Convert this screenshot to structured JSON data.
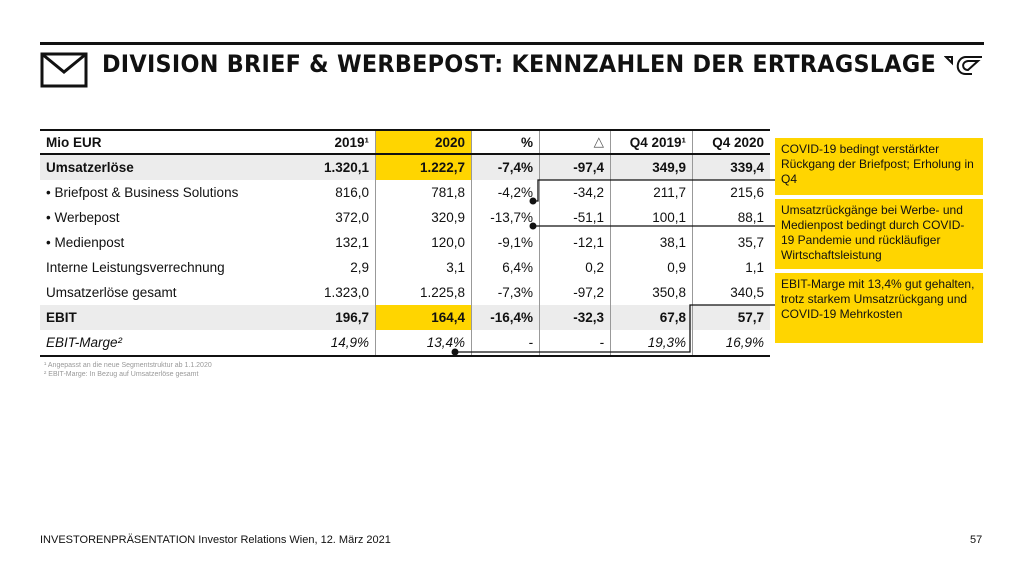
{
  "title": "DIVISION BRIEF & WERBEPOST: KENNZAHLEN DER ERTRAGSLAGE",
  "table": {
    "headers": [
      "Mio EUR",
      "2019¹",
      "2020",
      "%",
      "△",
      "Q4 2019¹",
      "Q4 2020"
    ],
    "rows": [
      [
        "Umsatzerlöse",
        "1.320,1",
        "1.222,7",
        "-7,4%",
        "-97,4",
        "349,9",
        "339,4"
      ],
      [
        "• Briefpost & Business Solutions",
        "816,0",
        "781,8",
        "-4,2%",
        "-34,2",
        "211,7",
        "215,6"
      ],
      [
        "• Werbepost",
        "372,0",
        "320,9",
        "-13,7%",
        "-51,1",
        "100,1",
        "88,1"
      ],
      [
        "• Medienpost",
        "132,1",
        "120,0",
        "-9,1%",
        "-12,1",
        "38,1",
        "35,7"
      ],
      [
        "Interne Leistungsverrechnung",
        "2,9",
        "3,1",
        "6,4%",
        "0,2",
        "0,9",
        "1,1"
      ],
      [
        "Umsatzerlöse gesamt",
        "1.323,0",
        "1.225,8",
        "-7,3%",
        "-97,2",
        "350,8",
        "340,5"
      ],
      [
        "EBIT",
        "196,7",
        "164,4",
        "-16,4%",
        "-32,3",
        "67,8",
        "57,7"
      ],
      [
        "EBIT-Marge²",
        "14,9%",
        "13,4%",
        "-",
        "-",
        "19,3%",
        "16,9%"
      ]
    ]
  },
  "callouts": [
    "COVID-19 bedingt verstärkter Rückgang der Briefpost; Erholung in Q4",
    "Umsatzrückgänge bei Werbe- und Medienpost bedingt durch COVID-19 Pandemie und rückläufiger Wirtschaftsleistung",
    "EBIT-Marge mit 13,4% gut gehalten, trotz starkem Umsatzrückgang und COVID-19 Mehrkosten"
  ],
  "footnotes": [
    "¹ Angepasst an die neue Segmentstruktur ab 1.1.2020",
    "² EBIT-Marge: In Bezug auf Umsatzerlöse gesamt"
  ],
  "footer": {
    "text": "INVESTORENPRÄSENTATION  Investor Relations Wien, 12. März 2021",
    "page": "57"
  },
  "colors": {
    "accent": "#ffd500"
  }
}
